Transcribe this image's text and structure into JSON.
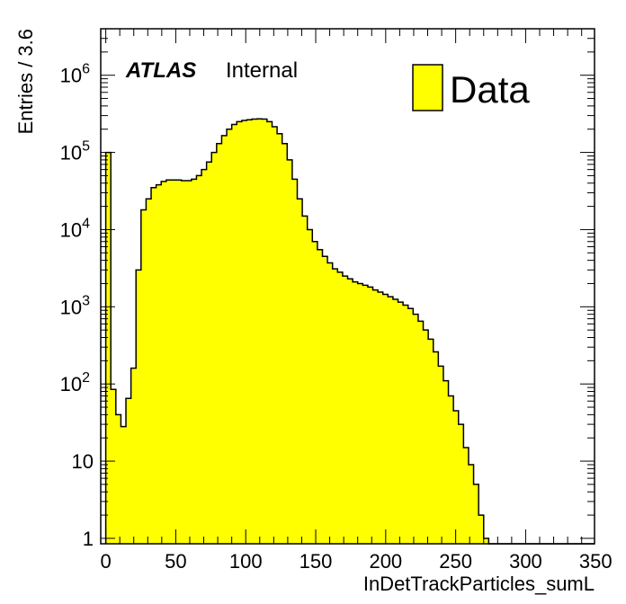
{
  "chart_data": {
    "type": "bar",
    "x_tick_labels": [
      "0",
      "50",
      "100",
      "150",
      "200",
      "250",
      "300",
      "350"
    ],
    "x_ticks": [
      0,
      50,
      100,
      150,
      200,
      250,
      300,
      350
    ],
    "xlim": [
      -3.6,
      349.2
    ],
    "ylim": [
      0.85,
      4000000
    ],
    "y_scale": "log",
    "y_tick_labels": [
      {
        "value": 1,
        "label": "1"
      },
      {
        "value": 10,
        "label": "10"
      },
      {
        "value": 100,
        "mantissa": "10",
        "exp": "2"
      },
      {
        "value": 1000,
        "mantissa": "10",
        "exp": "3"
      },
      {
        "value": 10000,
        "mantissa": "10",
        "exp": "4"
      },
      {
        "value": 100000,
        "mantissa": "10",
        "exp": "5"
      },
      {
        "value": 1000000,
        "mantissa": "10",
        "exp": "6"
      }
    ],
    "xlabel": "InDetTrackParticles_sumL",
    "ylabel": "Entries / 3.6",
    "atlas_label": "ATLAS",
    "atlas_status": "Internal",
    "legend_position": "top-right",
    "bin_width": 3.6,
    "series": [
      {
        "name": "Data",
        "color": "#ffff00",
        "edgecolor": "#000000",
        "x_start": -3.6,
        "values": [
          0.5,
          100000,
          85,
          40,
          28,
          65,
          160,
          3000,
          18000,
          25000,
          35000,
          38000,
          42000,
          44000,
          44000,
          44000,
          43000,
          43000,
          45000,
          50000,
          60000,
          75000,
          100000,
          130000,
          165000,
          200000,
          230000,
          250000,
          260000,
          265000,
          270000,
          272000,
          270000,
          250000,
          215000,
          175000,
          130000,
          80000,
          45000,
          25000,
          15000,
          10000,
          7000,
          5500,
          4500,
          3700,
          3100,
          2800,
          2500,
          2300,
          2100,
          2000,
          1900,
          1800,
          1650,
          1550,
          1450,
          1350,
          1250,
          1150,
          1050,
          950,
          800,
          650,
          500,
          380,
          260,
          170,
          110,
          70,
          45,
          30,
          15,
          9,
          5,
          2,
          1,
          0,
          0,
          0,
          0,
          0,
          0,
          0,
          0,
          0,
          0,
          0,
          0,
          0,
          0,
          0,
          0,
          0,
          0,
          0,
          0,
          0
        ]
      }
    ]
  }
}
